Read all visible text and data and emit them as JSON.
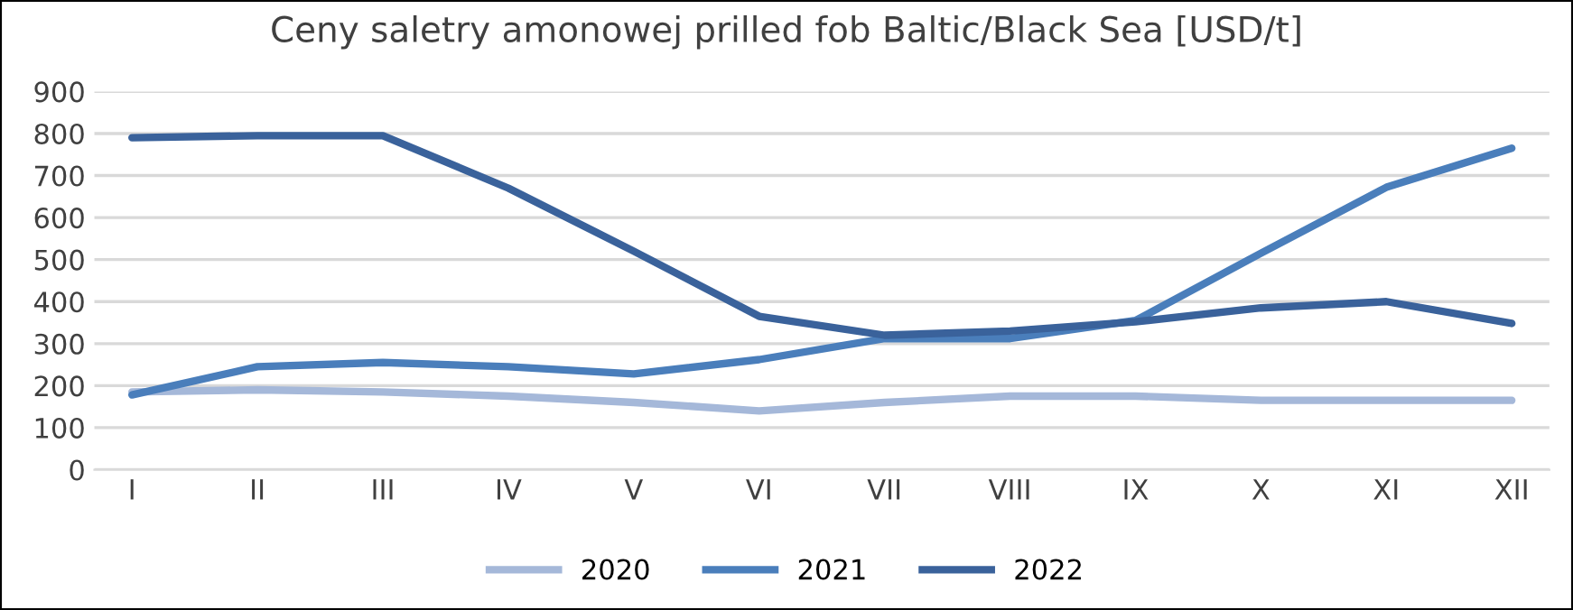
{
  "chart_data": {
    "type": "line",
    "title": "Ceny saletry amonowej prilled fob Baltic/Black Sea [USD/t]",
    "categories": [
      "I",
      "II",
      "III",
      "IV",
      "V",
      "VI",
      "VII",
      "VIII",
      "IX",
      "X",
      "XI",
      "XII"
    ],
    "series": [
      {
        "name": "2020",
        "color": "#a5b8d9",
        "values": [
          185,
          190,
          185,
          175,
          160,
          140,
          160,
          175,
          175,
          165,
          165,
          165
        ]
      },
      {
        "name": "2021",
        "color": "#4a7ebb",
        "values": [
          178,
          245,
          255,
          245,
          228,
          262,
          312,
          312,
          355,
          515,
          672,
          765
        ]
      },
      {
        "name": "2022",
        "color": "#3a629b",
        "values": [
          790,
          795,
          795,
          670,
          520,
          365,
          320,
          330,
          352,
          385,
          400,
          348
        ]
      }
    ],
    "ylim": [
      0,
      900
    ],
    "yticks": [
      0,
      100,
      200,
      300,
      400,
      500,
      600,
      700,
      800,
      900
    ],
    "grid": "y",
    "legend": "bottom",
    "marker": "none",
    "line_style": "solid"
  }
}
